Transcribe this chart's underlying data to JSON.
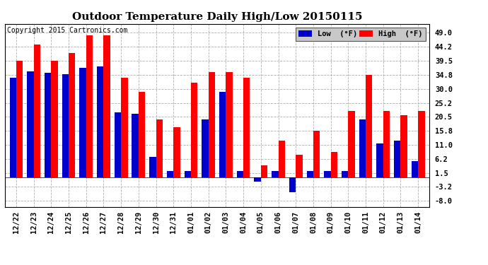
{
  "title": "Outdoor Temperature Daily High/Low 20150115",
  "copyright": "Copyright 2015 Cartronics.com",
  "ylabel_right_ticks": [
    -8.0,
    -3.2,
    1.5,
    6.2,
    11.0,
    15.8,
    20.5,
    25.2,
    30.0,
    34.8,
    39.5,
    44.2,
    49.0
  ],
  "ylim": [
    -10.0,
    52.0
  ],
  "dates": [
    "12/22",
    "12/23",
    "12/24",
    "12/25",
    "12/26",
    "12/27",
    "12/28",
    "12/29",
    "12/30",
    "12/31",
    "01/01",
    "01/02",
    "01/03",
    "01/04",
    "01/05",
    "01/06",
    "01/07",
    "01/08",
    "01/09",
    "01/10",
    "01/11",
    "01/12",
    "01/13",
    "01/14"
  ],
  "high": [
    39.5,
    45.0,
    39.5,
    42.0,
    48.0,
    48.0,
    33.8,
    29.0,
    19.5,
    17.0,
    32.0,
    35.6,
    35.6,
    33.8,
    4.0,
    12.5,
    7.5,
    15.8,
    8.5,
    22.5,
    34.8,
    22.5,
    21.0,
    22.5
  ],
  "low": [
    33.8,
    36.0,
    35.5,
    35.0,
    37.0,
    37.5,
    22.0,
    21.5,
    7.0,
    2.0,
    2.0,
    19.5,
    29.0,
    2.0,
    -1.5,
    2.0,
    -5.0,
    2.0,
    2.0,
    2.0,
    19.5,
    11.5,
    12.5,
    5.5
  ],
  "high_color": "#ff0000",
  "low_color": "#0000cc",
  "bg_color": "#ffffff",
  "grid_color": "#b0b0b0",
  "bar_width": 0.38,
  "title_fontsize": 11,
  "tick_fontsize": 7.5,
  "copyright_fontsize": 7
}
